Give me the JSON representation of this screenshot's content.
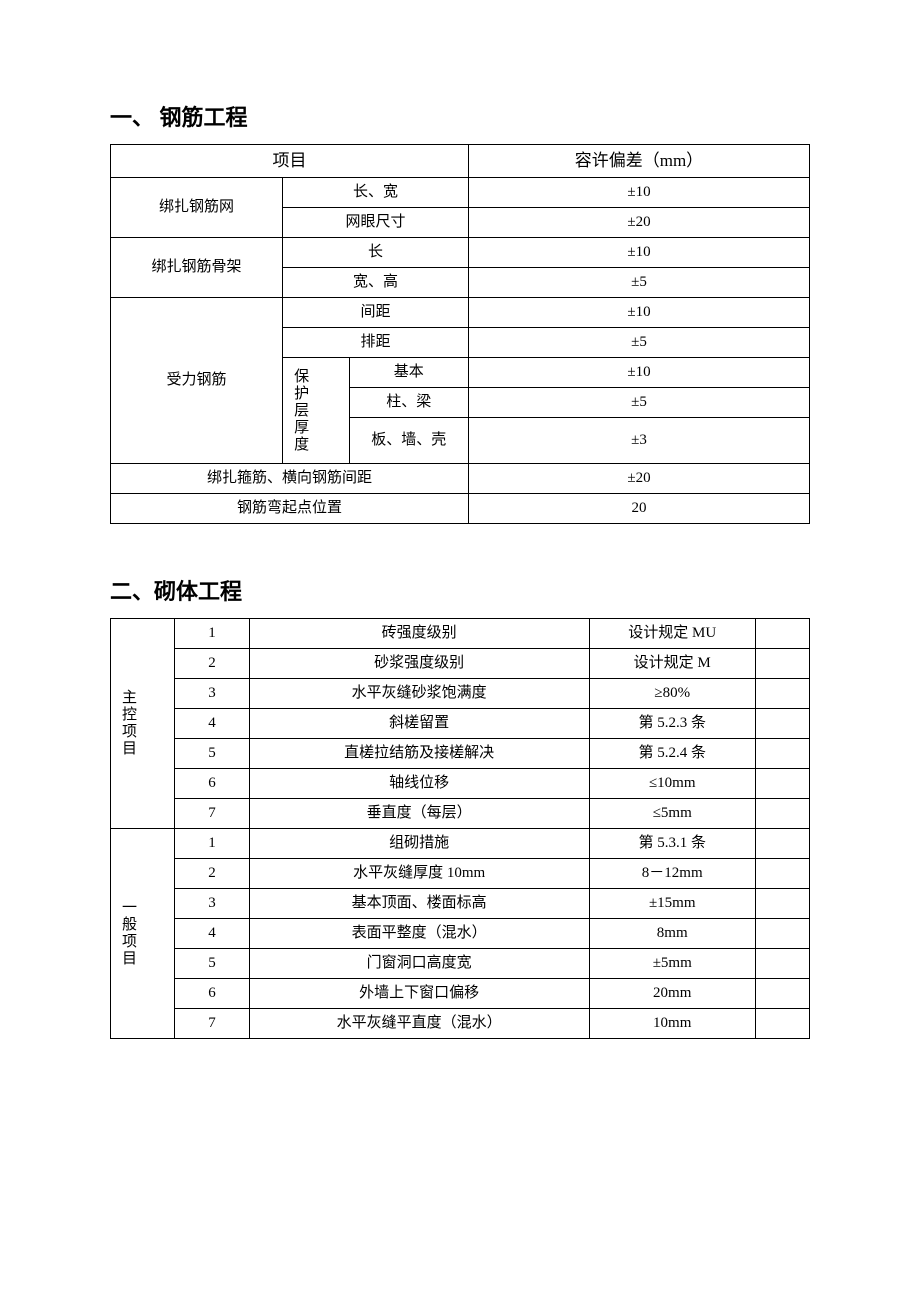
{
  "section1": {
    "title": "一、 钢筋工程",
    "header_item": "项目",
    "header_tolerance": "容许偏差（mm）",
    "group1": {
      "name": "绑扎钢筋网",
      "rows": [
        {
          "param": "长、宽",
          "tol": "±10"
        },
        {
          "param": "网眼尺寸",
          "tol": "±20"
        }
      ]
    },
    "group2": {
      "name": "绑扎钢筋骨架",
      "rows": [
        {
          "param": "长",
          "tol": "±10"
        },
        {
          "param": "宽、高",
          "tol": "±5"
        }
      ]
    },
    "group3": {
      "name": "受力钢筋",
      "row1": {
        "param": "间距",
        "tol": "±10"
      },
      "row2": {
        "param": "排距",
        "tol": "±5"
      },
      "sub_label": "保护层厚度",
      "sub_rows": [
        {
          "param": "基本",
          "tol": "±10"
        },
        {
          "param": "柱、梁",
          "tol": "±5"
        },
        {
          "param": "板、墙、壳",
          "tol": "±3"
        }
      ]
    },
    "row_stirrup": {
      "param": "绑扎箍筋、横向钢筋间距",
      "tol": "±20"
    },
    "row_bend": {
      "param": "钢筋弯起点位置",
      "tol": "20"
    }
  },
  "section2": {
    "title": "二、砌体工程",
    "group1": {
      "name": "主控项目",
      "rows": [
        {
          "no": "1",
          "item": "砖强度级别",
          "spec": "设计规定 MU"
        },
        {
          "no": "2",
          "item": "砂浆强度级别",
          "spec": "设计规定 M"
        },
        {
          "no": "3",
          "item": "水平灰缝砂浆饱满度",
          "spec": "≥80%"
        },
        {
          "no": "4",
          "item": "斜槎留置",
          "spec": "第 5.2.3 条"
        },
        {
          "no": "5",
          "item": "直槎拉结筋及接槎解决",
          "spec": "第 5.2.4 条"
        },
        {
          "no": "6",
          "item": "轴线位移",
          "spec": "≤10mm"
        },
        {
          "no": "7",
          "item": "垂直度（每层）",
          "spec": "≤5mm"
        }
      ]
    },
    "group2": {
      "name": "一般项目",
      "rows": [
        {
          "no": "1",
          "item": "组砌措施",
          "spec": "第 5.3.1 条"
        },
        {
          "no": "2",
          "item": "水平灰缝厚度 10mm",
          "spec": "8－12mm"
        },
        {
          "no": "3",
          "item": "基本顶面、楼面标高",
          "spec": "±15mm"
        },
        {
          "no": "4",
          "item": "表面平整度（混水）",
          "spec": "8mm"
        },
        {
          "no": "5",
          "item": "门窗洞口高度宽",
          "spec": "±5mm"
        },
        {
          "no": "6",
          "item": "外墙上下窗口偏移",
          "spec": "20mm"
        },
        {
          "no": "7",
          "item": "水平灰缝平直度（混水）",
          "spec": "10mm"
        }
      ]
    }
  }
}
